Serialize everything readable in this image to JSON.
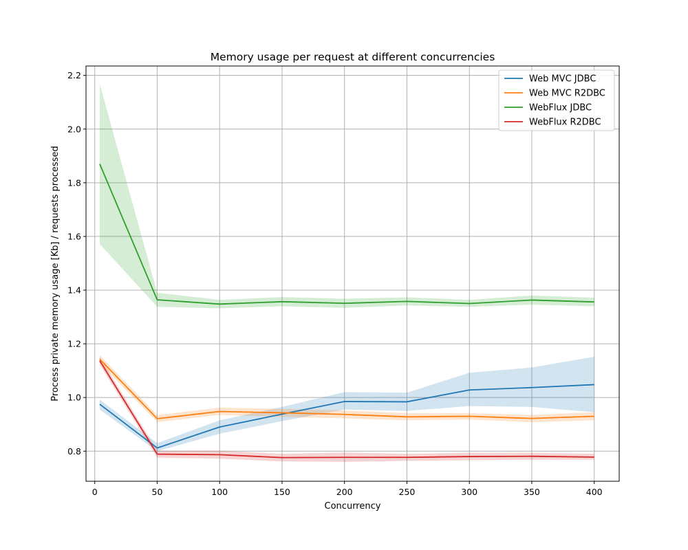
{
  "chart_data": {
    "type": "line",
    "title": "Memory usage per request at different concurrencies",
    "xlabel": "Concurrency",
    "ylabel": "Process private memory usage [Kb] / requests processed",
    "xlim": [
      -7,
      420
    ],
    "ylim": [
      0.688,
      2.235
    ],
    "x_ticks": [
      0,
      50,
      100,
      150,
      200,
      250,
      300,
      350,
      400
    ],
    "y_ticks": [
      0.8,
      1.0,
      1.2,
      1.4,
      1.6,
      1.8,
      2.0,
      2.2
    ],
    "grid": true,
    "legend_position": "top-right",
    "x": [
      4,
      50,
      100,
      150,
      200,
      250,
      300,
      350,
      400
    ],
    "series": [
      {
        "name": "Web MVC JDBC",
        "color": "#1f77b4",
        "values": [
          0.975,
          0.812,
          0.89,
          0.938,
          0.985,
          0.984,
          1.028,
          1.037,
          1.048
        ],
        "lower": [
          0.955,
          0.8,
          0.865,
          0.912,
          0.955,
          0.95,
          0.968,
          0.965,
          0.945
        ],
        "upper": [
          0.992,
          0.83,
          0.915,
          0.965,
          1.02,
          1.018,
          1.092,
          1.112,
          1.152
        ]
      },
      {
        "name": "Web MVC R2DBC",
        "color": "#ff7f0e",
        "values": [
          1.143,
          0.921,
          0.948,
          0.943,
          0.937,
          0.928,
          0.93,
          0.922,
          0.93
        ],
        "lower": [
          1.128,
          0.908,
          0.935,
          0.928,
          0.922,
          0.915,
          0.918,
          0.908,
          0.915
        ],
        "upper": [
          1.158,
          0.935,
          0.962,
          0.958,
          0.952,
          0.942,
          0.942,
          0.935,
          0.945
        ]
      },
      {
        "name": "WebFlux JDBC",
        "color": "#2ca02c",
        "values": [
          1.87,
          1.364,
          1.348,
          1.357,
          1.351,
          1.358,
          1.35,
          1.363,
          1.356
        ],
        "lower": [
          1.572,
          1.338,
          1.332,
          1.34,
          1.334,
          1.343,
          1.338,
          1.346,
          1.34
        ],
        "upper": [
          2.168,
          1.39,
          1.364,
          1.374,
          1.368,
          1.373,
          1.364,
          1.38,
          1.372
        ]
      },
      {
        "name": "WebFlux R2DBC",
        "color": "#d62728",
        "values": [
          1.137,
          0.789,
          0.787,
          0.776,
          0.777,
          0.777,
          0.78,
          0.781,
          0.778
        ],
        "lower": [
          1.122,
          0.776,
          0.772,
          0.762,
          0.76,
          0.764,
          0.766,
          0.768,
          0.768
        ],
        "upper": [
          1.152,
          0.802,
          0.802,
          0.79,
          0.795,
          0.79,
          0.794,
          0.794,
          0.79
        ]
      }
    ]
  }
}
